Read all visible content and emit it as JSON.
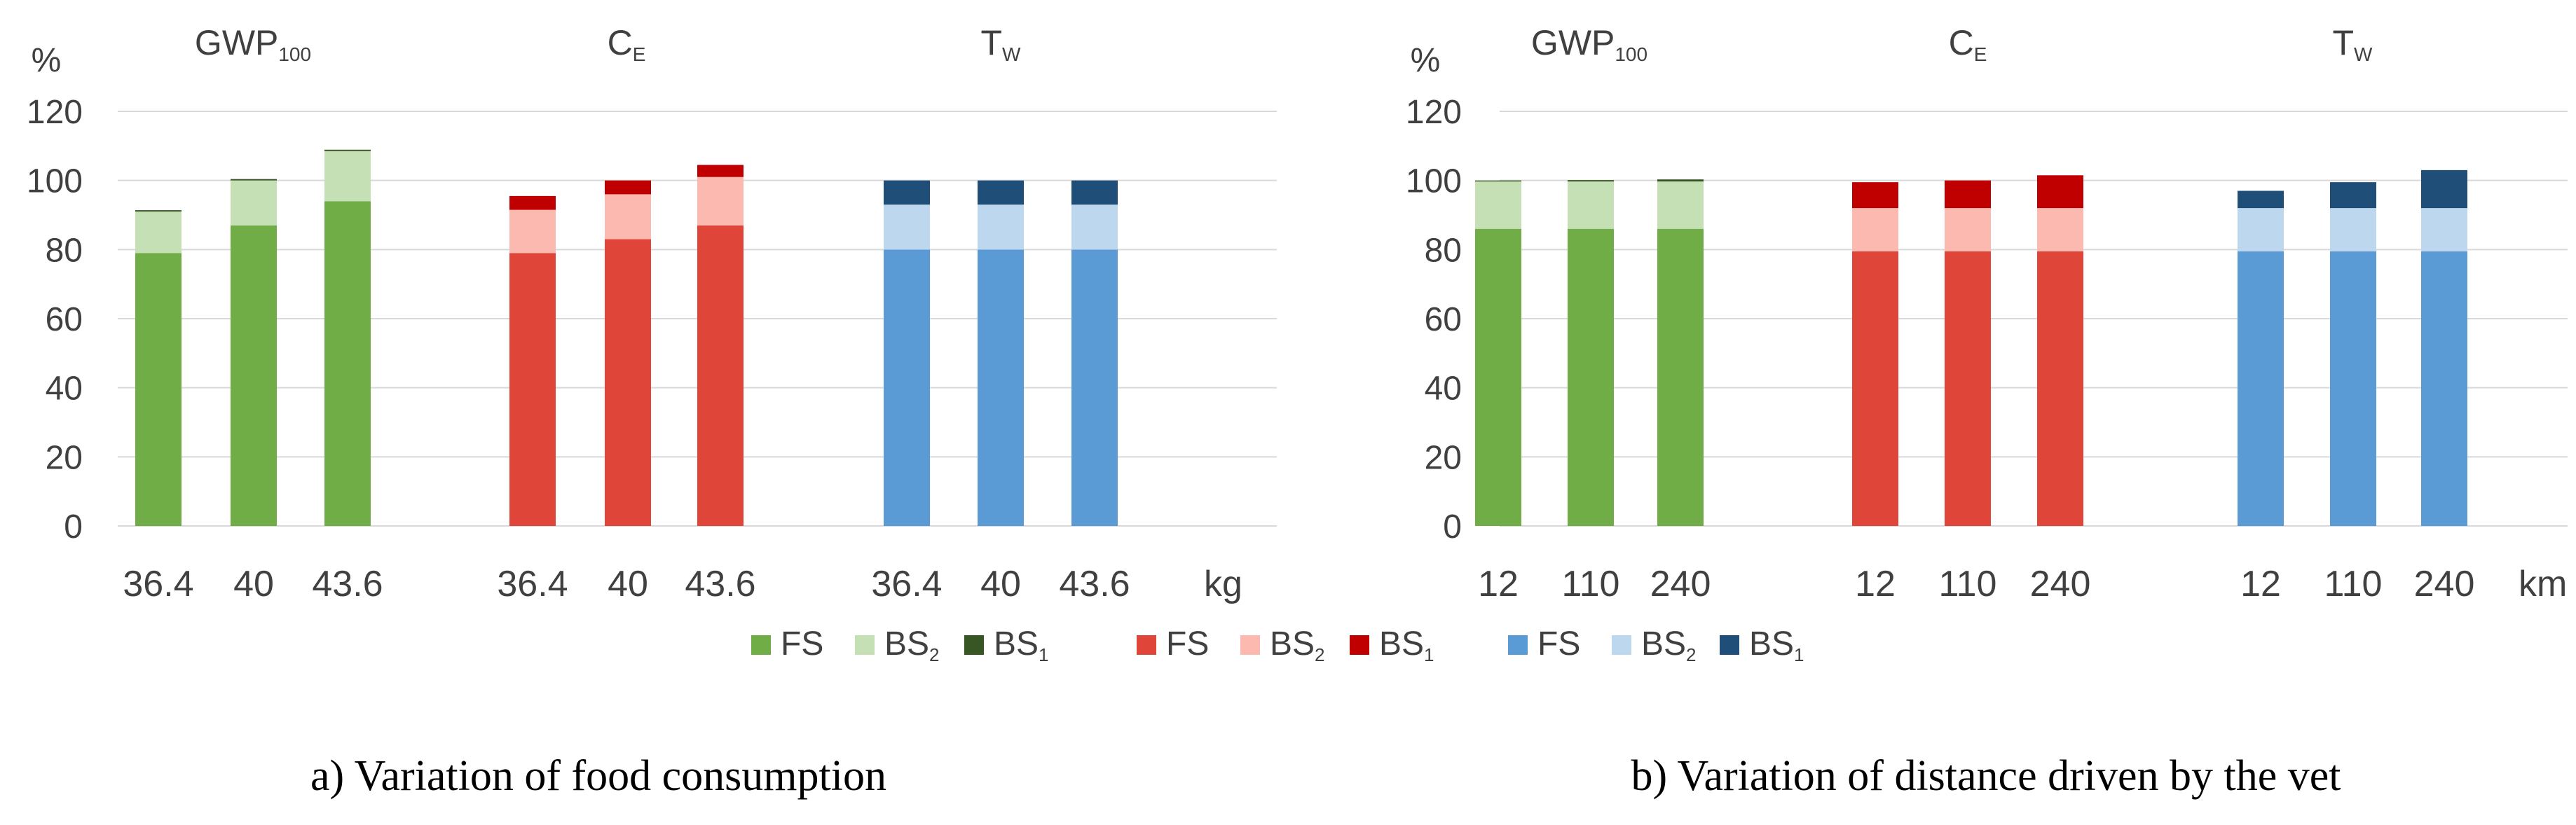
{
  "chart_data": [
    {
      "type": "bar",
      "stacked": true,
      "caption": "a) Variation of food consumption",
      "ylabel": "%",
      "ylim": [
        0,
        120
      ],
      "yticks": [
        "0",
        "20",
        "40",
        "60",
        "80",
        "100",
        "120"
      ],
      "unit_label": "kg",
      "groups": [
        {
          "title": "GWP",
          "title_sub": "100",
          "palette": "green",
          "categories": [
            "36.4",
            "40",
            "43.6"
          ],
          "series": [
            {
              "name": "FS",
              "values": [
                79,
                87,
                94
              ]
            },
            {
              "name": "BS2",
              "values": [
                12,
                13,
                14.5
              ]
            },
            {
              "name": "BS1",
              "values": [
                0.4,
                0.4,
                0.4
              ]
            }
          ]
        },
        {
          "title": "C",
          "title_sub": "E",
          "palette": "red",
          "categories": [
            "36.4",
            "40",
            "43.6"
          ],
          "series": [
            {
              "name": "FS",
              "values": [
                79,
                83,
                87
              ]
            },
            {
              "name": "BS2",
              "values": [
                12.5,
                13,
                14
              ]
            },
            {
              "name": "BS1",
              "values": [
                4,
                4,
                3.5
              ]
            }
          ]
        },
        {
          "title": "T",
          "title_sub": "W",
          "palette": "blue",
          "categories": [
            "36.4",
            "40",
            "43.6"
          ],
          "series": [
            {
              "name": "FS",
              "values": [
                80,
                80,
                80
              ]
            },
            {
              "name": "BS2",
              "values": [
                13,
                13,
                13
              ]
            },
            {
              "name": "BS1",
              "values": [
                7,
                7,
                7
              ]
            }
          ]
        }
      ]
    },
    {
      "type": "bar",
      "stacked": true,
      "caption": "b) Variation of distance driven by the vet",
      "ylabel": "%",
      "ylim": [
        0,
        120
      ],
      "yticks": [
        "0",
        "20",
        "40",
        "60",
        "80",
        "100",
        "120"
      ],
      "unit_label": "km",
      "groups": [
        {
          "title": "GWP",
          "title_sub": "100",
          "palette": "green",
          "categories": [
            "12",
            "110",
            "240"
          ],
          "series": [
            {
              "name": "FS",
              "values": [
                86,
                86,
                86
              ]
            },
            {
              "name": "BS2",
              "values": [
                13.7,
                13.7,
                13.7
              ]
            },
            {
              "name": "BS1",
              "values": [
                0.3,
                0.4,
                0.6
              ]
            }
          ]
        },
        {
          "title": "C",
          "title_sub": "E",
          "palette": "red",
          "categories": [
            "12",
            "110",
            "240"
          ],
          "series": [
            {
              "name": "FS",
              "values": [
                79.5,
                79.5,
                79.5
              ]
            },
            {
              "name": "BS2",
              "values": [
                12.5,
                12.5,
                12.5
              ]
            },
            {
              "name": "BS1",
              "values": [
                7.5,
                8,
                9.5
              ]
            }
          ]
        },
        {
          "title": "T",
          "title_sub": "W",
          "palette": "blue",
          "categories": [
            "12",
            "110",
            "240"
          ],
          "series": [
            {
              "name": "FS",
              "values": [
                79.5,
                79.5,
                79.5
              ]
            },
            {
              "name": "BS2",
              "values": [
                12.5,
                12.5,
                12.5
              ]
            },
            {
              "name": "BS1",
              "values": [
                5,
                7.5,
                11
              ]
            }
          ]
        }
      ]
    }
  ],
  "legend": [
    {
      "palette": "green",
      "items": [
        {
          "label": "FS",
          "sub": ""
        },
        {
          "label": "BS",
          "sub": "2"
        },
        {
          "label": "BS",
          "sub": "1"
        }
      ]
    },
    {
      "palette": "red",
      "items": [
        {
          "label": "FS",
          "sub": ""
        },
        {
          "label": "BS",
          "sub": "2"
        },
        {
          "label": "BS",
          "sub": "1"
        }
      ]
    },
    {
      "palette": "blue",
      "items": [
        {
          "label": "FS",
          "sub": ""
        },
        {
          "label": "BS",
          "sub": "2"
        },
        {
          "label": "BS",
          "sub": "1"
        }
      ]
    }
  ],
  "colors": {
    "green": [
      "#70ad47",
      "#c5e0b4",
      "#375623"
    ],
    "red": [
      "#e0453a",
      "#fbb9b0",
      "#c00000"
    ],
    "blue": [
      "#5b9bd5",
      "#bdd7ee",
      "#1f4e79"
    ],
    "gridline": "#d9d9d9",
    "axis_text": "#404040",
    "caption_text": "#000000"
  }
}
